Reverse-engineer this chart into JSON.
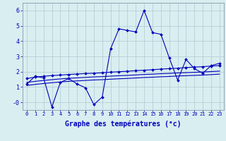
{
  "x_labels": [
    "0",
    "1",
    "2",
    "3",
    "4",
    "5",
    "6",
    "7",
    "8",
    "9",
    "10",
    "11",
    "12",
    "13",
    "14",
    "15",
    "16",
    "17",
    "18",
    "19",
    "20",
    "21",
    "22",
    "23"
  ],
  "x_values": [
    0,
    1,
    2,
    3,
    4,
    5,
    6,
    7,
    8,
    9,
    10,
    11,
    12,
    13,
    14,
    15,
    16,
    17,
    18,
    19,
    20,
    21,
    22,
    23
  ],
  "line1_y": [
    1.2,
    1.7,
    1.6,
    -0.3,
    1.3,
    1.55,
    1.2,
    0.95,
    -0.15,
    0.35,
    3.5,
    4.8,
    4.7,
    4.6,
    6.0,
    4.55,
    4.45,
    2.9,
    1.45,
    2.8,
    2.2,
    1.9,
    2.4,
    2.55
  ],
  "line2_y": [
    1.55,
    1.65,
    1.7,
    1.75,
    1.78,
    1.82,
    1.85,
    1.88,
    1.9,
    1.93,
    1.97,
    2.0,
    2.03,
    2.07,
    2.1,
    2.13,
    2.17,
    2.2,
    2.23,
    2.27,
    2.3,
    2.33,
    2.37,
    2.4
  ],
  "line3_y": [
    1.3,
    1.37,
    1.43,
    1.48,
    1.53,
    1.57,
    1.6,
    1.63,
    1.66,
    1.68,
    1.71,
    1.74,
    1.76,
    1.79,
    1.82,
    1.84,
    1.87,
    1.89,
    1.92,
    1.94,
    1.96,
    1.98,
    2.01,
    2.04
  ],
  "line4_y": [
    1.1,
    1.17,
    1.23,
    1.28,
    1.33,
    1.37,
    1.4,
    1.43,
    1.46,
    1.48,
    1.51,
    1.54,
    1.56,
    1.59,
    1.62,
    1.64,
    1.67,
    1.69,
    1.72,
    1.74,
    1.76,
    1.78,
    1.81,
    1.84
  ],
  "ylim": [
    -0.5,
    6.5
  ],
  "yticks": [
    0,
    1,
    2,
    3,
    4,
    5,
    6
  ],
  "ytick_labels": [
    "-0",
    "1",
    "2",
    "3",
    "4",
    "5",
    "6"
  ],
  "xlabel": "Graphe des températures (°c)",
  "line_color": "#0000bb",
  "bg_color": "#d8eef0",
  "grid_color": "#b0c8d4",
  "marker": "D",
  "marker_size": 2.0,
  "line_width": 0.8
}
